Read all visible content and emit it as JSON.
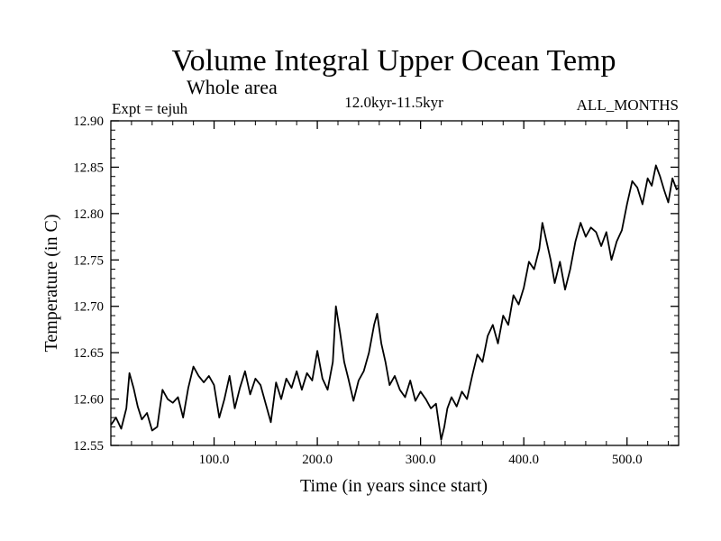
{
  "chart_data": {
    "type": "line",
    "title": "Volume Integral Upper Ocean Temp",
    "subtitle": "Whole area",
    "expt_label": "Expt = tejuh",
    "period_label": "12.0kyr-11.5kyr",
    "months_label": "ALL_MONTHS",
    "xlabel": "Time (in years since start)",
    "ylabel": "Temperature (in C)",
    "xlim": [
      0,
      550
    ],
    "ylim": [
      12.55,
      12.9
    ],
    "x_ticks": [
      100,
      200,
      300,
      400,
      500
    ],
    "x_tick_labels": [
      "100.0",
      "200.0",
      "300.0",
      "400.0",
      "500.0"
    ],
    "y_ticks": [
      12.55,
      12.6,
      12.65,
      12.7,
      12.75,
      12.8,
      12.85,
      12.9
    ],
    "y_tick_labels": [
      "12.55",
      "12.60",
      "12.65",
      "12.70",
      "12.75",
      "12.80",
      "12.85",
      "12.90"
    ],
    "series": [
      {
        "name": "tejuh",
        "x": [
          0,
          5,
          10,
          15,
          18,
          22,
          26,
          30,
          35,
          40,
          45,
          50,
          55,
          60,
          65,
          70,
          75,
          80,
          85,
          90,
          95,
          100,
          105,
          110,
          115,
          120,
          125,
          130,
          135,
          140,
          145,
          150,
          155,
          160,
          165,
          170,
          175,
          180,
          185,
          190,
          195,
          200,
          205,
          210,
          215,
          218,
          222,
          226,
          230,
          235,
          240,
          245,
          250,
          255,
          258,
          262,
          266,
          270,
          275,
          280,
          285,
          290,
          295,
          300,
          305,
          310,
          315,
          320,
          323,
          326,
          330,
          335,
          340,
          345,
          350,
          355,
          360,
          365,
          370,
          375,
          380,
          385,
          390,
          395,
          400,
          405,
          410,
          415,
          418,
          422,
          426,
          430,
          435,
          440,
          445,
          450,
          455,
          460,
          465,
          470,
          475,
          480,
          485,
          490,
          495,
          500,
          505,
          510,
          515,
          520,
          524,
          528,
          532,
          536,
          540,
          544,
          548,
          550
        ],
        "values": [
          12.572,
          12.58,
          12.568,
          12.59,
          12.628,
          12.612,
          12.592,
          12.578,
          12.585,
          12.566,
          12.57,
          12.61,
          12.6,
          12.596,
          12.602,
          12.58,
          12.612,
          12.635,
          12.625,
          12.618,
          12.625,
          12.615,
          12.58,
          12.6,
          12.625,
          12.59,
          12.612,
          12.63,
          12.605,
          12.622,
          12.615,
          12.595,
          12.575,
          12.618,
          12.6,
          12.622,
          12.612,
          12.63,
          12.61,
          12.628,
          12.62,
          12.652,
          12.622,
          12.61,
          12.64,
          12.7,
          12.672,
          12.64,
          12.622,
          12.598,
          12.62,
          12.63,
          12.65,
          12.68,
          12.692,
          12.66,
          12.64,
          12.615,
          12.625,
          12.61,
          12.602,
          12.62,
          12.598,
          12.608,
          12.6,
          12.59,
          12.595,
          12.556,
          12.57,
          12.59,
          12.602,
          12.592,
          12.608,
          12.6,
          12.625,
          12.648,
          12.64,
          12.668,
          12.68,
          12.66,
          12.69,
          12.68,
          12.712,
          12.702,
          12.72,
          12.748,
          12.74,
          12.762,
          12.79,
          12.77,
          12.75,
          12.725,
          12.748,
          12.718,
          12.74,
          12.77,
          12.79,
          12.775,
          12.785,
          12.78,
          12.765,
          12.78,
          12.75,
          12.77,
          12.782,
          12.81,
          12.835,
          12.828,
          12.81,
          12.838,
          12.83,
          12.852,
          12.84,
          12.825,
          12.812,
          12.838,
          12.826,
          12.828
        ]
      }
    ]
  }
}
